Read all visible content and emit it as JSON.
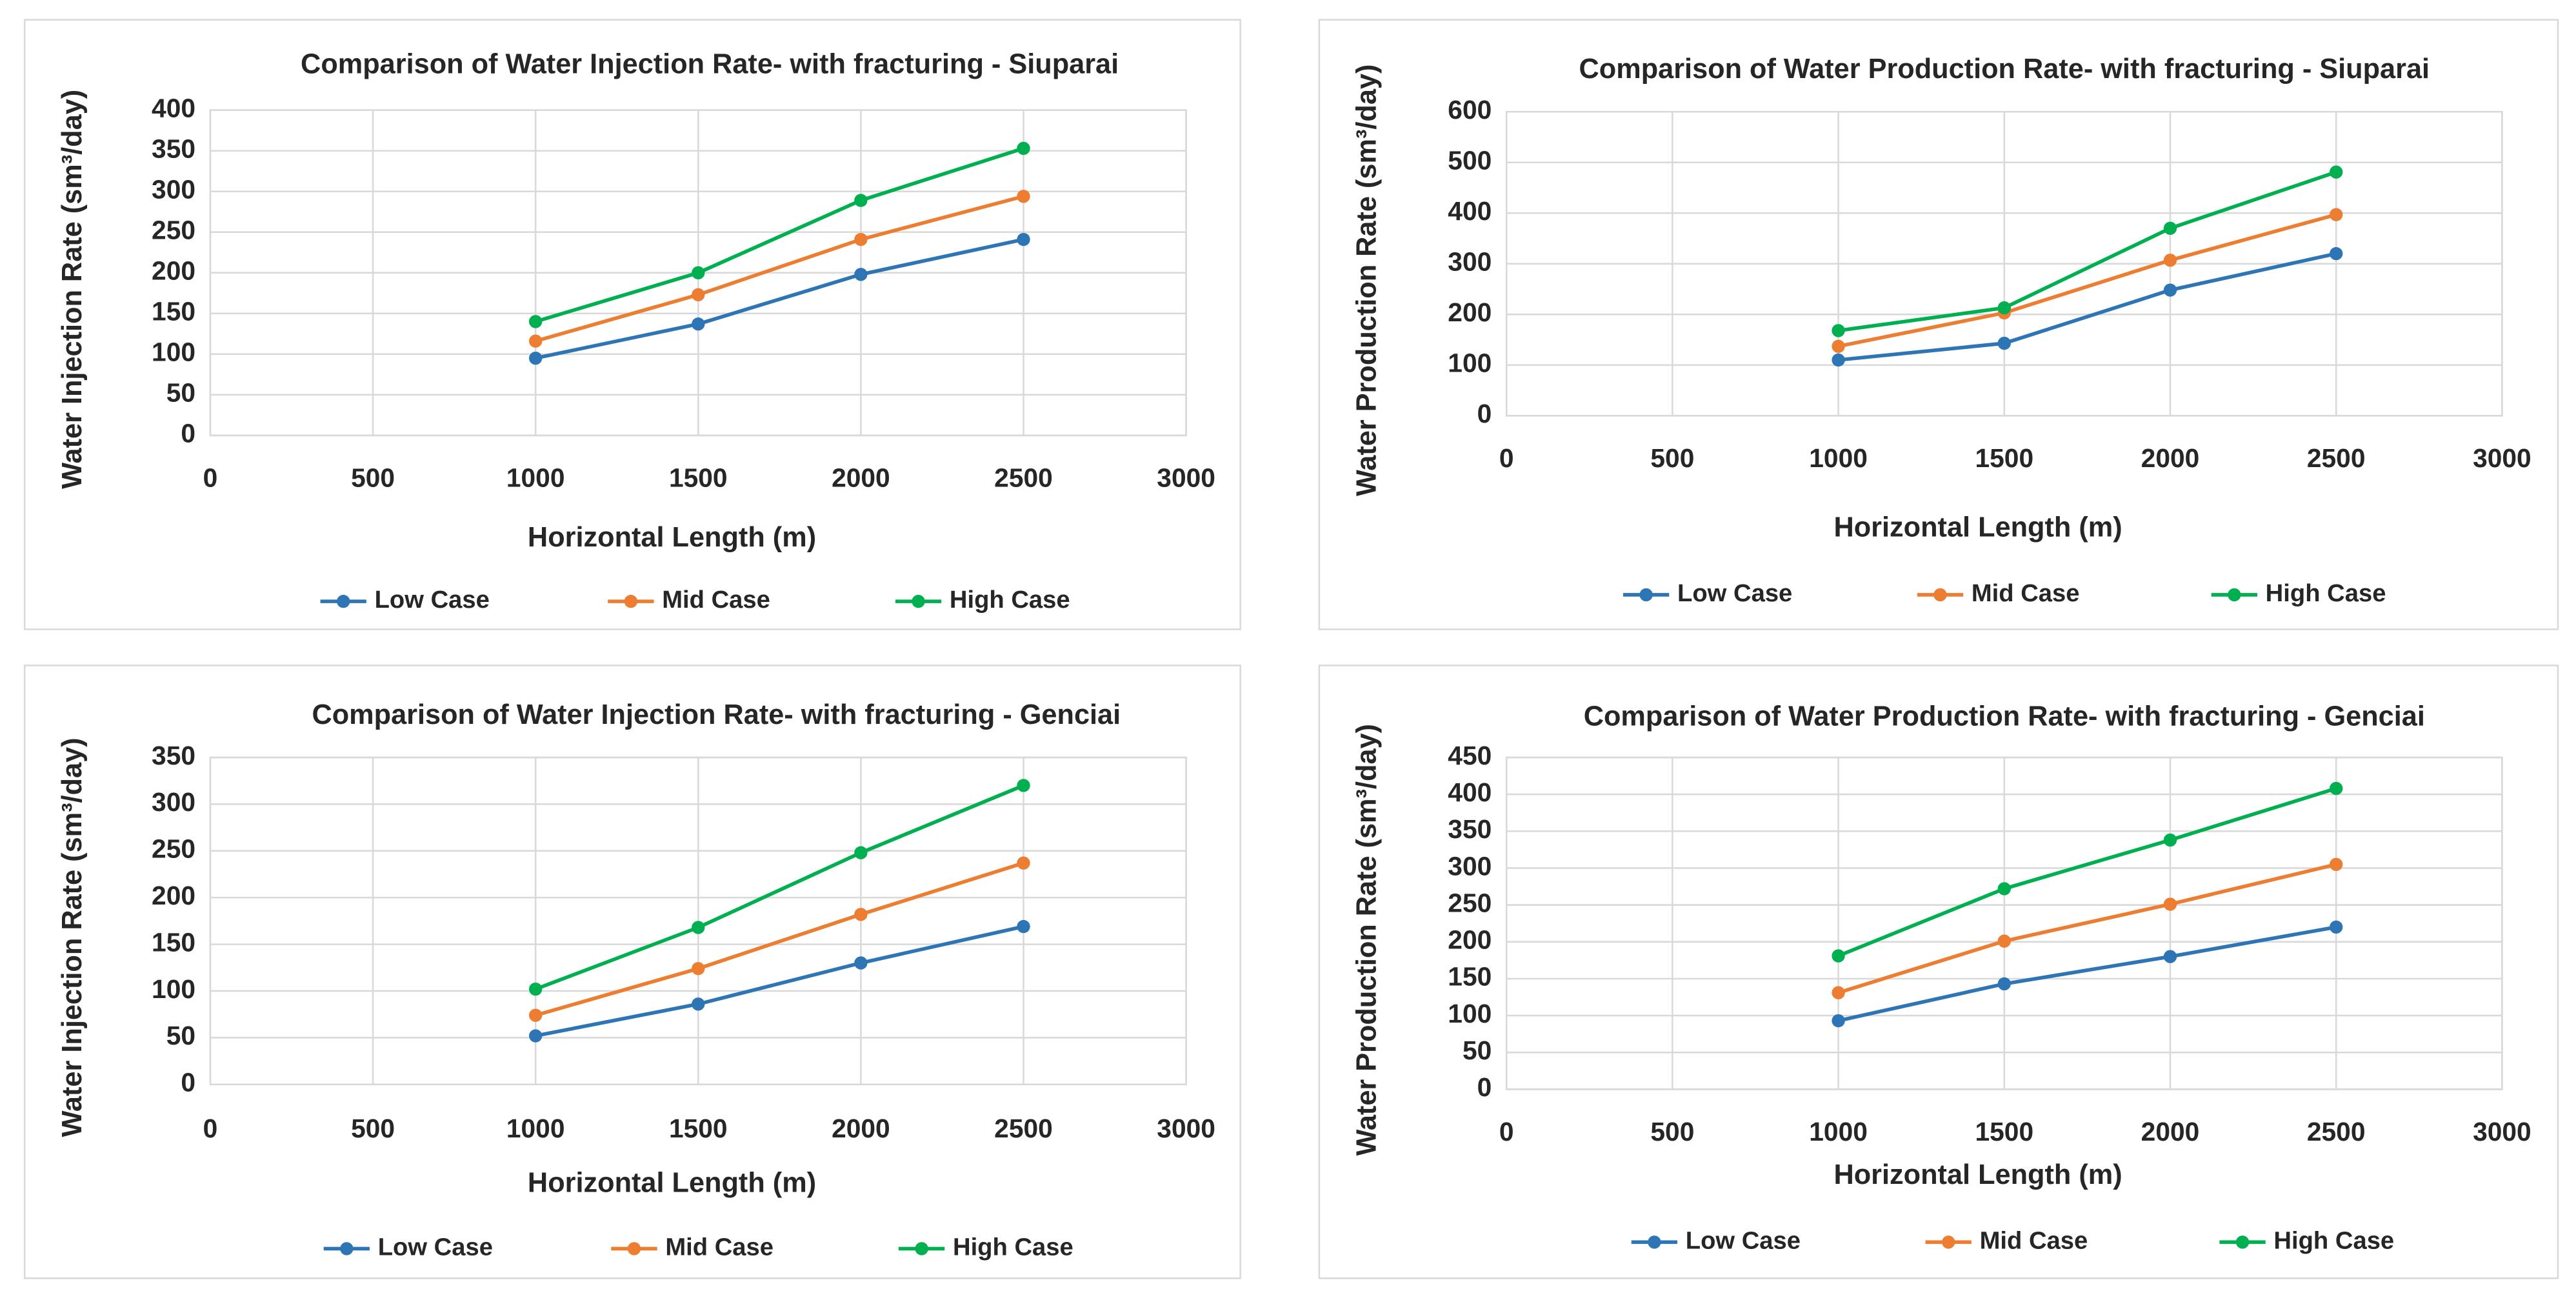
{
  "chart_data": [
    {
      "type": "line",
      "title": "Comparison of Water Injection Rate- with fracturing - Siuparai",
      "x_label": "Horizontal Length (m)",
      "y_label": "Water Injection Rate (sm³/day)",
      "x": [
        1000,
        1500,
        2000,
        2500
      ],
      "xlim": [
        0,
        3000
      ],
      "xticks": [
        0,
        500,
        1000,
        1500,
        2000,
        2500,
        3000
      ],
      "ylim": [
        0,
        400
      ],
      "yticks": [
        0,
        50,
        100,
        150,
        200,
        250,
        300,
        350,
        400
      ],
      "grid": true,
      "series": [
        {
          "name": "Low Case",
          "color": "#2e75b6",
          "values": [
            95,
            137,
            198,
            241
          ]
        },
        {
          "name": "Mid Case",
          "color": "#ed7d31",
          "values": [
            116,
            173,
            241,
            294
          ]
        },
        {
          "name": "High Case",
          "color": "#00b050",
          "values": [
            140,
            200,
            289,
            353
          ]
        }
      ]
    },
    {
      "type": "line",
      "title": "Comparison of Water Production Rate- with fracturing - Siuparai",
      "x_label": "Horizontal Length (m)",
      "y_label": "Water Production Rate (sm³/day)",
      "x": [
        1000,
        1500,
        2000,
        2500
      ],
      "xlim": [
        0,
        3000
      ],
      "xticks": [
        0,
        500,
        1000,
        1500,
        2000,
        2500,
        3000
      ],
      "ylim": [
        0,
        600
      ],
      "yticks": [
        0,
        100,
        200,
        300,
        400,
        500,
        600
      ],
      "grid": true,
      "series": [
        {
          "name": "Low Case",
          "color": "#2e75b6",
          "values": [
            110,
            143,
            248,
            320
          ]
        },
        {
          "name": "Mid Case",
          "color": "#ed7d31",
          "values": [
            137,
            203,
            307,
            397
          ]
        },
        {
          "name": "High Case",
          "color": "#00b050",
          "values": [
            168,
            213,
            370,
            481
          ]
        }
      ]
    },
    {
      "type": "line",
      "title": "Comparison of Water Injection Rate- with fracturing - Genciai",
      "x_label": "Horizontal Length (m)",
      "y_label": "Water Injection Rate (sm³/day)",
      "x": [
        1000,
        1500,
        2000,
        2500
      ],
      "xlim": [
        0,
        3000
      ],
      "xticks": [
        0,
        500,
        1000,
        1500,
        2000,
        2500,
        3000
      ],
      "ylim": [
        0,
        350
      ],
      "yticks": [
        0,
        50,
        100,
        150,
        200,
        250,
        300,
        350
      ],
      "grid": true,
      "series": [
        {
          "name": "Low Case",
          "color": "#2e75b6",
          "values": [
            52,
            86,
            130,
            169
          ]
        },
        {
          "name": "Mid Case",
          "color": "#ed7d31",
          "values": [
            74,
            124,
            182,
            237
          ]
        },
        {
          "name": "High Case",
          "color": "#00b050",
          "values": [
            102,
            168,
            248,
            320
          ]
        }
      ]
    },
    {
      "type": "line",
      "title": "Comparison of Water Production Rate- with fracturing - Genciai",
      "x_label": "Horizontal Length (m)",
      "y_label": "Water Production Rate (sm³/day)",
      "x": [
        1000,
        1500,
        2000,
        2500
      ],
      "xlim": [
        0,
        3000
      ],
      "xticks": [
        0,
        500,
        1000,
        1500,
        2000,
        2500,
        3000
      ],
      "ylim": [
        0,
        450
      ],
      "yticks": [
        0,
        50,
        100,
        150,
        200,
        250,
        300,
        350,
        400,
        450
      ],
      "grid": true,
      "series": [
        {
          "name": "Low Case",
          "color": "#2e75b6",
          "values": [
            93,
            143,
            180,
            220
          ]
        },
        {
          "name": "Mid Case",
          "color": "#ed7d31",
          "values": [
            131,
            201,
            251,
            305
          ]
        },
        {
          "name": "High Case",
          "color": "#00b050",
          "values": [
            181,
            272,
            338,
            408
          ]
        }
      ]
    }
  ]
}
